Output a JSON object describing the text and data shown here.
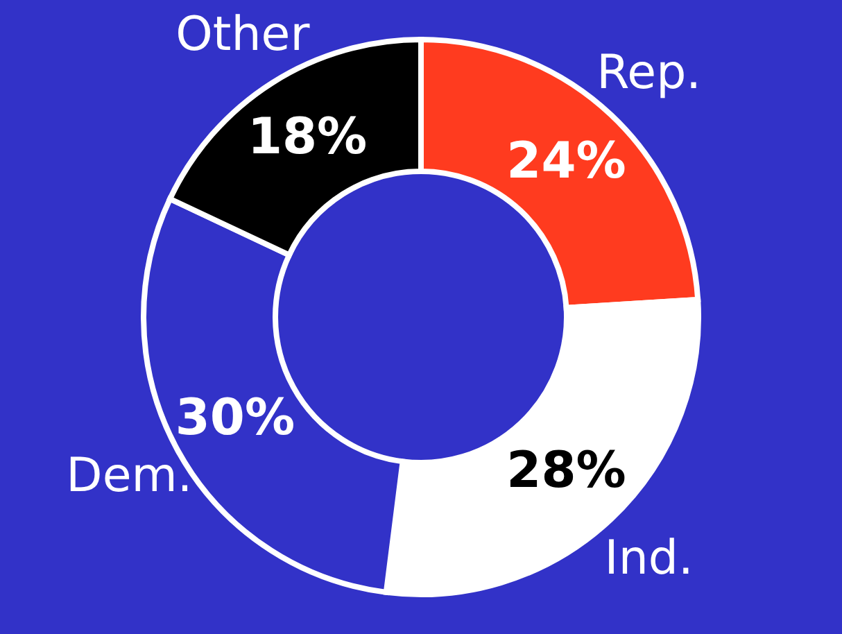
{
  "chart_data": {
    "type": "donut",
    "categories": [
      "Rep.",
      "Ind.",
      "Dem.",
      "Other"
    ],
    "values": [
      24,
      28,
      30,
      18
    ],
    "colors": [
      "#ff3b1f",
      "#ffffff",
      "#3232c8",
      "#000000"
    ],
    "value_labels": [
      "24%",
      "28%",
      "30%",
      "18%"
    ]
  }
}
